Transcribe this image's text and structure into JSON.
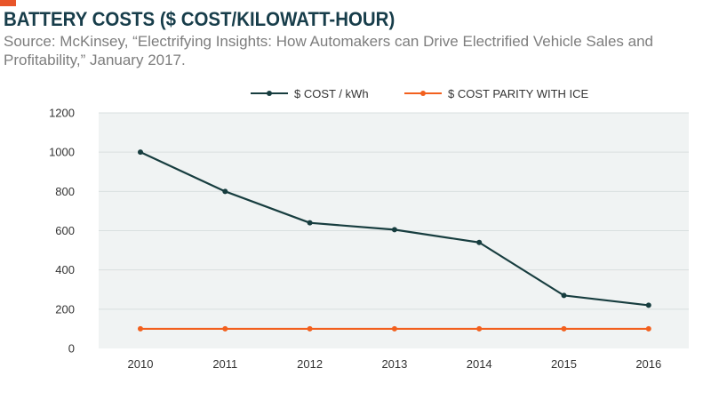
{
  "header": {
    "title": "BATTERY COSTS ($ COST/KILOWATT-HOUR)",
    "subtitle": "Source: McKinsey, “Electrifying Insights: How Automakers can Drive Electrified Vehicle Sales and Profitability,” January 2017."
  },
  "colors": {
    "accent": "#e8552a",
    "title": "#173d4a",
    "series_cost": "#173d3f",
    "series_parity": "#f2601e",
    "plot_bg": "#f0f3f3"
  },
  "chart_data": {
    "type": "line",
    "title": "BATTERY COSTS ($ COST/KILOWATT-HOUR)",
    "categories": [
      "2010",
      "2011",
      "2012",
      "2013",
      "2014",
      "2015",
      "2016"
    ],
    "series": [
      {
        "name": "$ COST / kWh",
        "values": [
          1000,
          800,
          640,
          605,
          540,
          270,
          220
        ]
      },
      {
        "name": "$ COST PARITY WITH ICE",
        "values": [
          100,
          100,
          100,
          100,
          100,
          100,
          100
        ]
      }
    ],
    "yticks": [
      "0",
      "200",
      "400",
      "600",
      "800",
      "1000",
      "1200"
    ],
    "ylim": [
      0,
      1200
    ],
    "xlabel": "",
    "ylabel": "",
    "grid": true,
    "legend_position": "top"
  }
}
